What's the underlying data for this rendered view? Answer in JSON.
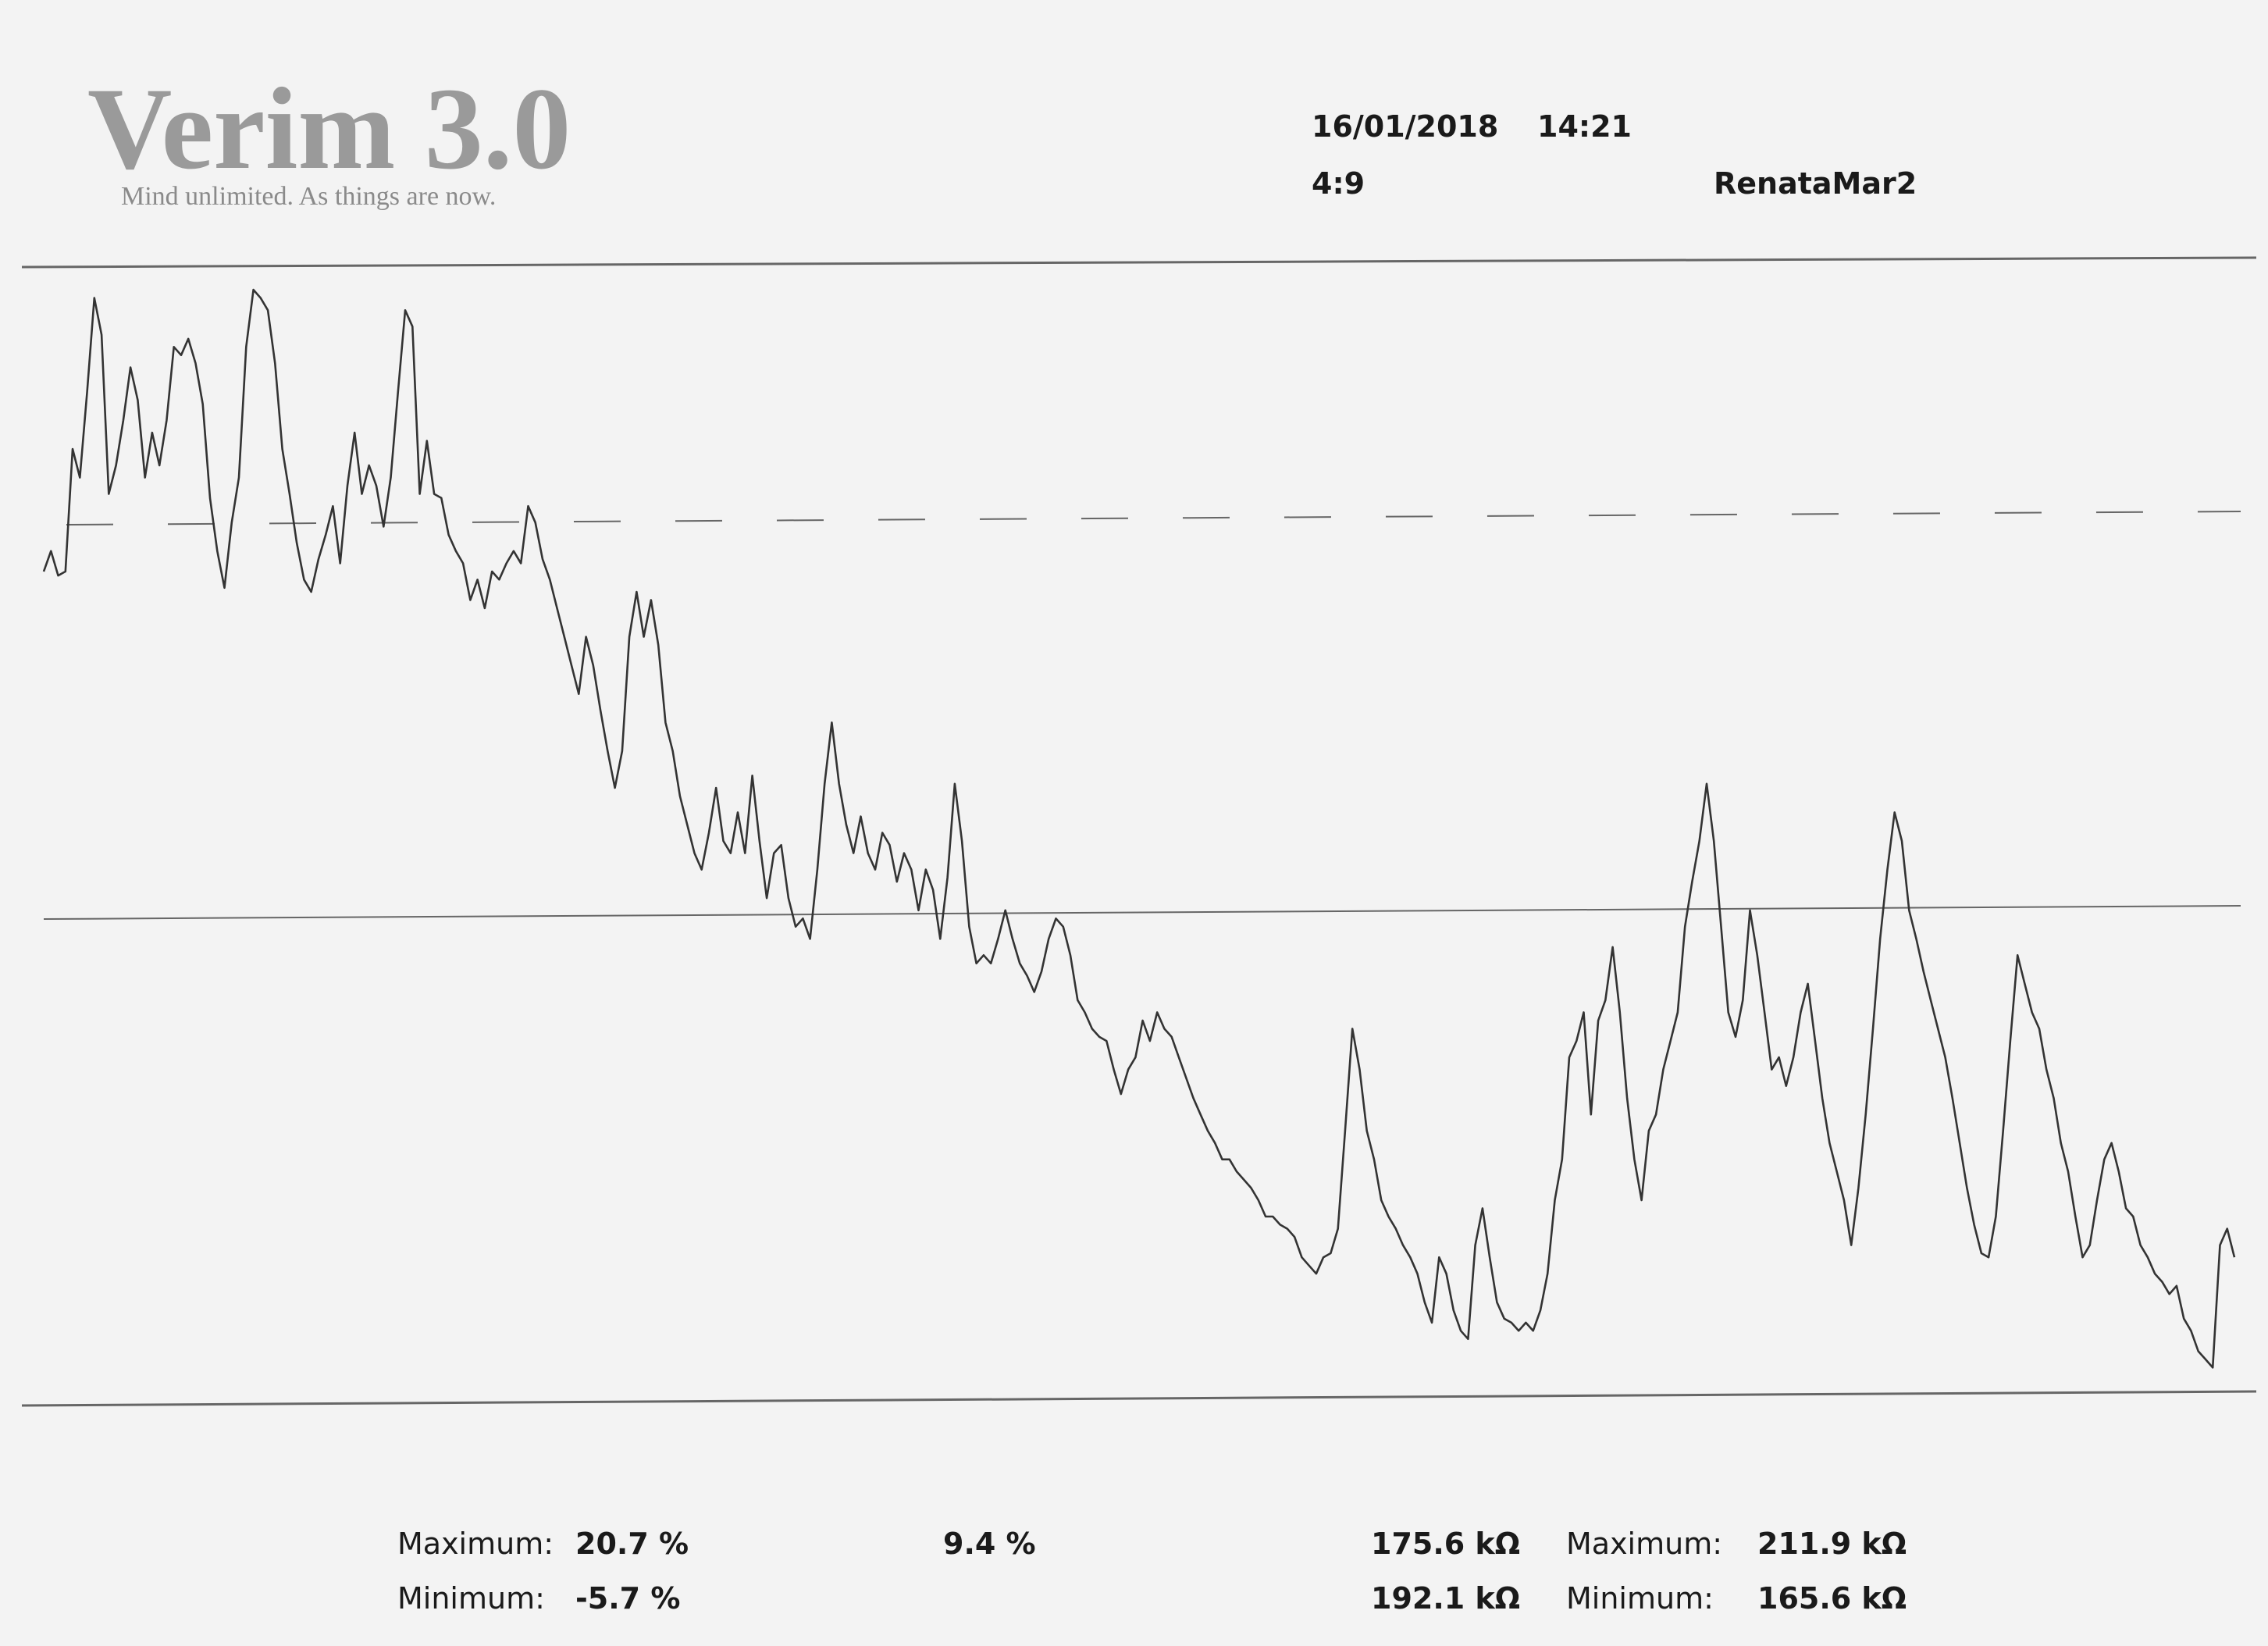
{
  "header": {
    "title": "Verim 3.0",
    "tagline": "Mind unlimited. As things are now.",
    "date": "16/01/2018",
    "time": "14:21",
    "ratio": "4:9",
    "user": "RenataMar2"
  },
  "chart_data": {
    "type": "line",
    "color": "#333333",
    "ylim": [
      -6.4,
      21.2
    ],
    "values": [
      13.8,
      14.3,
      13.7,
      13.8,
      16.8,
      16.1,
      18.2,
      20.5,
      19.6,
      15.7,
      16.4,
      17.5,
      18.8,
      18.0,
      16.1,
      17.2,
      16.4,
      17.5,
      19.3,
      19.1,
      19.5,
      18.9,
      17.9,
      15.6,
      14.3,
      13.4,
      15.0,
      16.1,
      19.3,
      20.7,
      20.5,
      20.2,
      18.9,
      16.8,
      15.7,
      14.5,
      13.6,
      13.3,
      14.1,
      14.7,
      15.4,
      14.0,
      15.9,
      17.2,
      15.7,
      16.4,
      15.9,
      14.9,
      16.1,
      18.2,
      20.2,
      19.8,
      15.7,
      17.0,
      15.7,
      15.6,
      14.7,
      14.3,
      14.0,
      13.1,
      13.6,
      12.9,
      13.8,
      13.6,
      14.0,
      14.3,
      14.0,
      15.4,
      15.0,
      14.1,
      13.6,
      12.9,
      12.2,
      11.5,
      10.8,
      12.2,
      11.5,
      10.4,
      9.4,
      8.5,
      9.4,
      12.2,
      13.3,
      12.2,
      13.1,
      12.0,
      10.1,
      9.4,
      8.3,
      7.6,
      6.9,
      6.5,
      7.4,
      8.5,
      7.2,
      6.9,
      7.9,
      6.9,
      8.8,
      7.2,
      5.8,
      6.9,
      7.1,
      5.8,
      5.1,
      5.3,
      4.8,
      6.5,
      8.6,
      10.1,
      8.6,
      7.6,
      6.9,
      7.8,
      6.9,
      6.5,
      7.4,
      7.1,
      6.2,
      6.9,
      6.5,
      5.5,
      6.5,
      6.0,
      4.8,
      6.3,
      8.6,
      7.2,
      5.1,
      4.2,
      4.4,
      4.2,
      4.8,
      5.5,
      4.8,
      4.2,
      3.9,
      3.5,
      4.0,
      4.8,
      5.3,
      5.1,
      4.4,
      3.3,
      3.0,
      2.6,
      2.4,
      2.3,
      1.6,
      1.0,
      1.6,
      1.9,
      2.8,
      2.3,
      3.0,
      2.6,
      2.4,
      1.9,
      1.4,
      0.9,
      0.5,
      0.1,
      -0.2,
      -0.6,
      -0.6,
      -0.9,
      -1.1,
      -1.3,
      -1.6,
      -2.0,
      -2.0,
      -2.2,
      -2.3,
      -2.5,
      -3.0,
      -3.2,
      -3.4,
      -3.0,
      -2.9,
      -2.3,
      0.1,
      2.6,
      1.6,
      0.1,
      -0.6,
      -1.6,
      -2.0,
      -2.3,
      -2.7,
      -3.0,
      -3.4,
      -4.1,
      -4.6,
      -3.0,
      -3.4,
      -4.3,
      -4.8,
      -5.0,
      -2.7,
      -1.8,
      -3.0,
      -4.1,
      -4.5,
      -4.6,
      -4.8,
      -4.6,
      -4.8,
      -4.3,
      -3.4,
      -1.6,
      -0.6,
      1.9,
      2.3,
      3.0,
      0.5,
      2.8,
      3.3,
      4.6,
      3.0,
      0.9,
      -0.6,
      -1.6,
      0.1,
      0.5,
      1.6,
      2.3,
      3.0,
      5.1,
      6.2,
      7.2,
      8.6,
      7.2,
      5.1,
      3.0,
      2.4,
      3.3,
      5.5,
      4.4,
      3.0,
      1.6,
      1.9,
      1.2,
      1.9,
      3.0,
      3.7,
      2.3,
      0.9,
      -0.2,
      -0.9,
      -1.6,
      -2.7,
      -1.3,
      0.5,
      2.6,
      4.8,
      6.5,
      7.9,
      7.2,
      5.5,
      4.8,
      4.0,
      3.3,
      2.6,
      1.9,
      0.9,
      -0.2,
      -1.3,
      -2.2,
      -2.9,
      -3.0,
      -2.0,
      0.1,
      2.3,
      4.4,
      3.7,
      3.0,
      2.6,
      1.6,
      0.9,
      -0.2,
      -0.9,
      -2.0,
      -3.0,
      -2.7,
      -1.6,
      -0.6,
      -0.2,
      -0.9,
      -1.8,
      -2.0,
      -2.7,
      -3.0,
      -3.4,
      -3.6,
      -3.9,
      -3.7,
      -4.5,
      -4.8,
      -5.3,
      -5.5,
      -5.7,
      -2.7,
      -2.3,
      -3.0
    ]
  },
  "footer": {
    "left_max_label": "Maximum:",
    "left_max": "20.7 %",
    "left_min_label": "Minimum:",
    "left_min": "-5.7 %",
    "middle": "9.4 %",
    "resistance_1": "175.6 kΩ",
    "resistance_2": "192.1 kΩ",
    "right_max_label": "Maximum:",
    "right_max": "211.9 kΩ",
    "right_min_label": "Minimum:",
    "right_min": "165.6 kΩ"
  }
}
